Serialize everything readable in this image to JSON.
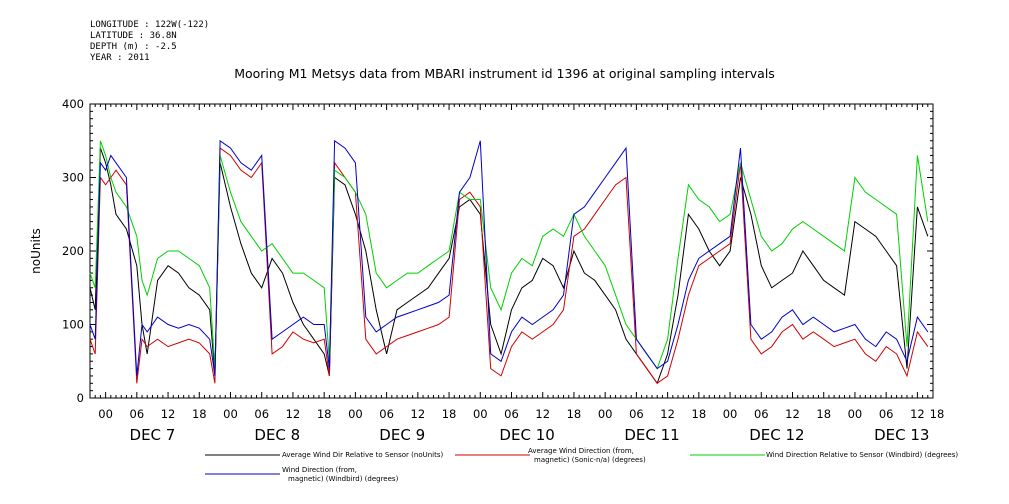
{
  "header": {
    "longitude": "LONGITUDE : 122W(-122)",
    "latitude": "LATITUDE : 36.8N",
    "depth": "DEPTH (m) : -2.5",
    "year": "YEAR : 2011"
  },
  "chart_data": {
    "type": "line",
    "title": "Mooring M1 Metsys data from MBARI instrument id 1396 at original sampling intervals",
    "ylabel": "noUnits",
    "xlabel": "",
    "ylim": [
      0,
      400
    ],
    "yticks": [
      0,
      100,
      200,
      300,
      400
    ],
    "xlim": [
      -3,
      159
    ],
    "hour_ticks": [
      {
        "x": 0,
        "label": "00"
      },
      {
        "x": 6,
        "label": "06"
      },
      {
        "x": 12,
        "label": "12"
      },
      {
        "x": 18,
        "label": "18"
      },
      {
        "x": 24,
        "label": "00"
      },
      {
        "x": 30,
        "label": "06"
      },
      {
        "x": 36,
        "label": "12"
      },
      {
        "x": 42,
        "label": "18"
      },
      {
        "x": 48,
        "label": "00"
      },
      {
        "x": 54,
        "label": "06"
      },
      {
        "x": 60,
        "label": "12"
      },
      {
        "x": 66,
        "label": "18"
      },
      {
        "x": 72,
        "label": "00"
      },
      {
        "x": 78,
        "label": "06"
      },
      {
        "x": 84,
        "label": "12"
      },
      {
        "x": 90,
        "label": "18"
      },
      {
        "x": 96,
        "label": "00"
      },
      {
        "x": 102,
        "label": "06"
      },
      {
        "x": 108,
        "label": "12"
      },
      {
        "x": 114,
        "label": "18"
      },
      {
        "x": 120,
        "label": "00"
      },
      {
        "x": 126,
        "label": "06"
      },
      {
        "x": 132,
        "label": "12"
      },
      {
        "x": 138,
        "label": "18"
      },
      {
        "x": 144,
        "label": "00"
      },
      {
        "x": 150,
        "label": "06"
      },
      {
        "x": 156,
        "label": "12"
      },
      {
        "x": 162,
        "label": "18"
      }
    ],
    "day_labels": [
      {
        "x": 9,
        "label": "DEC  7"
      },
      {
        "x": 33,
        "label": "DEC  8"
      },
      {
        "x": 57,
        "label": "DEC  9"
      },
      {
        "x": 81,
        "label": "DEC 10"
      },
      {
        "x": 105,
        "label": "DEC 11"
      },
      {
        "x": 129,
        "label": "DEC 12"
      },
      {
        "x": 153,
        "label": "DEC 13"
      }
    ],
    "series": [
      {
        "name": "Average Wind Dir Relative to Sensor (noUnits)",
        "color": "#000000",
        "x": [
          -3,
          -2,
          -1,
          0,
          1,
          2,
          4,
          6,
          7,
          8,
          10,
          12,
          14,
          16,
          18,
          20,
          21,
          22,
          24,
          26,
          28,
          30,
          32,
          34,
          36,
          38,
          40,
          42,
          43,
          44,
          46,
          48,
          50,
          52,
          54,
          56,
          58,
          60,
          62,
          64,
          66,
          68,
          70,
          72,
          74,
          76,
          78,
          80,
          82,
          84,
          86,
          88,
          90,
          92,
          94,
          96,
          98,
          100,
          102,
          104,
          106,
          108,
          110,
          112,
          114,
          116,
          118,
          120,
          122,
          124,
          126,
          128,
          130,
          132,
          134,
          136,
          138,
          140,
          142,
          144,
          146,
          148,
          150,
          152,
          154,
          156,
          158
        ],
        "y": [
          150,
          120,
          340,
          320,
          290,
          250,
          230,
          180,
          100,
          60,
          160,
          180,
          170,
          150,
          140,
          120,
          30,
          320,
          260,
          210,
          170,
          150,
          190,
          170,
          130,
          100,
          80,
          60,
          30,
          300,
          290,
          250,
          200,
          120,
          60,
          120,
          130,
          140,
          150,
          170,
          190,
          260,
          270,
          250,
          100,
          60,
          120,
          150,
          160,
          190,
          180,
          150,
          200,
          170,
          160,
          140,
          120,
          80,
          60,
          40,
          20,
          60,
          140,
          250,
          230,
          200,
          180,
          200,
          300,
          250,
          180,
          150,
          160,
          170,
          200,
          180,
          160,
          150,
          140,
          240,
          230,
          220,
          200,
          180,
          40,
          260,
          220
        ]
      },
      {
        "name": "Average Wind Direction (from, magnetic) (Sonic-n/a) (degrees)",
        "color": "#d00000",
        "x": [
          -3,
          -2,
          -1,
          0,
          1,
          2,
          4,
          6,
          7,
          8,
          10,
          12,
          14,
          16,
          18,
          20,
          21,
          22,
          24,
          26,
          28,
          30,
          32,
          34,
          36,
          38,
          40,
          42,
          43,
          44,
          46,
          48,
          50,
          52,
          54,
          56,
          58,
          60,
          62,
          64,
          66,
          68,
          70,
          72,
          74,
          76,
          78,
          80,
          82,
          84,
          86,
          88,
          90,
          92,
          94,
          96,
          98,
          100,
          102,
          104,
          106,
          108,
          110,
          112,
          114,
          116,
          118,
          120,
          122,
          124,
          126,
          128,
          130,
          132,
          134,
          136,
          138,
          140,
          142,
          144,
          146,
          148,
          150,
          152,
          154,
          156,
          158
        ],
        "y": [
          80,
          60,
          300,
          290,
          300,
          310,
          290,
          20,
          80,
          70,
          80,
          70,
          75,
          80,
          75,
          60,
          20,
          340,
          330,
          310,
          300,
          320,
          60,
          70,
          90,
          80,
          75,
          80,
          30,
          320,
          300,
          280,
          80,
          60,
          70,
          80,
          85,
          90,
          95,
          100,
          110,
          270,
          280,
          260,
          40,
          30,
          70,
          90,
          80,
          90,
          100,
          120,
          220,
          230,
          250,
          270,
          290,
          300,
          60,
          40,
          20,
          30,
          80,
          140,
          180,
          190,
          200,
          210,
          320,
          80,
          60,
          70,
          90,
          100,
          80,
          90,
          80,
          70,
          75,
          80,
          60,
          50,
          70,
          60,
          30,
          90,
          70
        ]
      },
      {
        "name": "Wind Direction Relative to Sensor (Windbird) (degrees)",
        "color": "#00d000",
        "x": [
          -3,
          -2,
          -1,
          0,
          1,
          2,
          4,
          6,
          7,
          8,
          10,
          12,
          14,
          16,
          18,
          20,
          21,
          22,
          24,
          26,
          28,
          30,
          32,
          34,
          36,
          38,
          40,
          42,
          43,
          44,
          46,
          48,
          50,
          52,
          54,
          56,
          58,
          60,
          62,
          64,
          66,
          68,
          70,
          72,
          74,
          76,
          78,
          80,
          82,
          84,
          86,
          88,
          90,
          92,
          94,
          96,
          98,
          100,
          102,
          104,
          106,
          108,
          110,
          112,
          114,
          116,
          118,
          120,
          122,
          124,
          126,
          128,
          130,
          132,
          134,
          136,
          138,
          140,
          142,
          144,
          146,
          148,
          150,
          152,
          154,
          156,
          158
        ],
        "y": [
          170,
          150,
          350,
          330,
          300,
          280,
          260,
          220,
          160,
          140,
          190,
          200,
          200,
          190,
          180,
          150,
          40,
          330,
          280,
          240,
          220,
          200,
          210,
          190,
          170,
          170,
          160,
          150,
          50,
          310,
          300,
          280,
          250,
          170,
          150,
          160,
          170,
          170,
          180,
          190,
          200,
          280,
          270,
          270,
          150,
          120,
          170,
          190,
          180,
          220,
          230,
          220,
          250,
          220,
          200,
          180,
          140,
          100,
          80,
          60,
          40,
          80,
          190,
          290,
          270,
          260,
          240,
          250,
          320,
          270,
          220,
          200,
          210,
          230,
          240,
          230,
          220,
          210,
          200,
          300,
          280,
          270,
          260,
          250,
          70,
          330,
          240
        ]
      },
      {
        "name": "Wind Direction (from, magnetic) (Windbird) (degrees)",
        "color": "#0000c8",
        "x": [
          -3,
          -2,
          -1,
          0,
          1,
          2,
          4,
          6,
          7,
          8,
          10,
          12,
          14,
          16,
          18,
          20,
          21,
          22,
          24,
          26,
          28,
          30,
          32,
          34,
          36,
          38,
          40,
          42,
          43,
          44,
          46,
          48,
          50,
          52,
          54,
          56,
          58,
          60,
          62,
          64,
          66,
          68,
          70,
          72,
          74,
          76,
          78,
          80,
          82,
          84,
          86,
          88,
          90,
          92,
          94,
          96,
          98,
          100,
          102,
          104,
          106,
          108,
          110,
          112,
          114,
          116,
          118,
          120,
          122,
          124,
          126,
          128,
          130,
          132,
          134,
          136,
          138,
          140,
          142,
          144,
          146,
          148,
          150,
          152,
          154,
          156,
          158
        ],
        "y": [
          100,
          80,
          320,
          310,
          330,
          320,
          300,
          30,
          100,
          90,
          110,
          100,
          95,
          100,
          95,
          80,
          30,
          350,
          340,
          320,
          310,
          330,
          80,
          90,
          100,
          110,
          100,
          100,
          40,
          350,
          340,
          320,
          110,
          90,
          100,
          110,
          115,
          120,
          125,
          130,
          140,
          280,
          300,
          350,
          60,
          50,
          90,
          110,
          100,
          110,
          120,
          140,
          250,
          260,
          280,
          300,
          320,
          340,
          80,
          60,
          40,
          50,
          100,
          160,
          190,
          200,
          210,
          220,
          340,
          100,
          80,
          90,
          110,
          120,
          100,
          110,
          100,
          90,
          95,
          100,
          80,
          70,
          90,
          80,
          50,
          110,
          90
        ]
      }
    ],
    "legend_placement": "bottom",
    "legend": [
      {
        "line1": "Average Wind Dir Relative to Sensor (noUnits)",
        "line2": "",
        "color": "#000000"
      },
      {
        "line1": "Average Wind Direction (from,",
        "line2": "magnetic) (Sonic-n/a) (degrees)",
        "color": "#d00000"
      },
      {
        "line1": "Wind Direction Relative to Sensor (Windbird) (degrees)",
        "line2": "",
        "color": "#00d000"
      },
      {
        "line1": "Wind Direction (from,",
        "line2": "magnetic) (Windbird) (degrees)",
        "color": "#0000c8"
      }
    ]
  }
}
